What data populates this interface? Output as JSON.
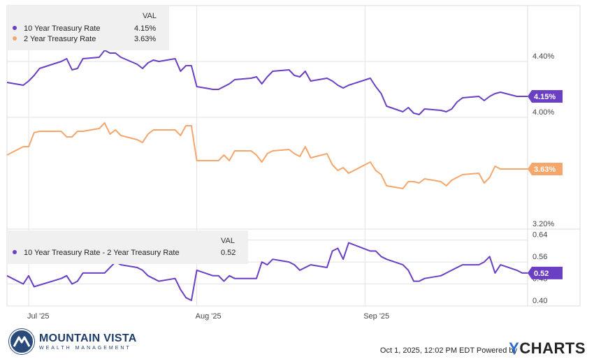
{
  "chart_data": [
    {
      "type": "line",
      "ylim": [
        3.2,
        4.8
      ],
      "yticks": [
        "4.40%",
        "4.00%",
        "3.20%"
      ],
      "ytick_values": [
        4.4,
        4.0,
        3.2
      ],
      "x_start": "2025-06-27",
      "x_end": "2025-10-01",
      "xticks": [
        "Jul '25",
        "Aug '25",
        "Sep '25"
      ],
      "xtick_dates": [
        "2025-07-01",
        "2025-08-01",
        "2025-09-01"
      ],
      "legend_header": "VAL",
      "legend_position": "top-left",
      "series": [
        {
          "name": "10 Year Treasury Rate",
          "value_label": "4.15%",
          "end_badge": "4.15%",
          "color": "#6a3fc4",
          "points": [
            [
              "2025-06-27",
              4.25
            ],
            [
              "2025-06-30",
              4.23
            ],
            [
              "2025-07-01",
              4.26
            ],
            [
              "2025-07-02",
              4.3
            ],
            [
              "2025-07-03",
              4.35
            ],
            [
              "2025-07-07",
              4.4
            ],
            [
              "2025-07-08",
              4.42
            ],
            [
              "2025-07-09",
              4.34
            ],
            [
              "2025-07-10",
              4.35
            ],
            [
              "2025-07-11",
              4.42
            ],
            [
              "2025-07-14",
              4.43
            ],
            [
              "2025-07-15",
              4.48
            ],
            [
              "2025-07-16",
              4.46
            ],
            [
              "2025-07-17",
              4.46
            ],
            [
              "2025-07-18",
              4.43
            ],
            [
              "2025-07-21",
              4.38
            ],
            [
              "2025-07-22",
              4.35
            ],
            [
              "2025-07-23",
              4.39
            ],
            [
              "2025-07-24",
              4.41
            ],
            [
              "2025-07-25",
              4.4
            ],
            [
              "2025-07-28",
              4.42
            ],
            [
              "2025-07-29",
              4.33
            ],
            [
              "2025-07-30",
              4.37
            ],
            [
              "2025-07-31",
              4.37
            ],
            [
              "2025-08-01",
              4.22
            ],
            [
              "2025-08-04",
              4.2
            ],
            [
              "2025-08-05",
              4.2
            ],
            [
              "2025-08-06",
              4.22
            ],
            [
              "2025-08-07",
              4.24
            ],
            [
              "2025-08-08",
              4.27
            ],
            [
              "2025-08-11",
              4.28
            ],
            [
              "2025-08-12",
              4.29
            ],
            [
              "2025-08-13",
              4.24
            ],
            [
              "2025-08-14",
              4.29
            ],
            [
              "2025-08-15",
              4.33
            ],
            [
              "2025-08-18",
              4.34
            ],
            [
              "2025-08-19",
              4.3
            ],
            [
              "2025-08-20",
              4.29
            ],
            [
              "2025-08-21",
              4.33
            ],
            [
              "2025-08-22",
              4.26
            ],
            [
              "2025-08-25",
              4.28
            ],
            [
              "2025-08-26",
              4.26
            ],
            [
              "2025-08-27",
              4.23
            ],
            [
              "2025-08-28",
              4.21
            ],
            [
              "2025-08-29",
              4.23
            ],
            [
              "2025-09-02",
              4.28
            ],
            [
              "2025-09-03",
              4.22
            ],
            [
              "2025-09-04",
              4.17
            ],
            [
              "2025-09-05",
              4.08
            ],
            [
              "2025-09-08",
              4.04
            ],
            [
              "2025-09-09",
              4.07
            ],
            [
              "2025-09-10",
              4.03
            ],
            [
              "2025-09-11",
              4.02
            ],
            [
              "2025-09-12",
              4.06
            ],
            [
              "2025-09-15",
              4.05
            ],
            [
              "2025-09-16",
              4.04
            ],
            [
              "2025-09-17",
              4.06
            ],
            [
              "2025-09-18",
              4.11
            ],
            [
              "2025-09-19",
              4.14
            ],
            [
              "2025-09-22",
              4.15
            ],
            [
              "2025-09-23",
              4.12
            ],
            [
              "2025-09-24",
              4.15
            ],
            [
              "2025-09-25",
              4.17
            ],
            [
              "2025-09-26",
              4.18
            ],
            [
              "2025-09-29",
              4.15
            ],
            [
              "2025-09-30",
              4.15
            ],
            [
              "2025-10-01",
              4.15
            ]
          ]
        },
        {
          "name": "2 Year Treasury Rate",
          "value_label": "3.63%",
          "end_badge": "3.63%",
          "color": "#f4a66b",
          "points": [
            [
              "2025-06-27",
              3.73
            ],
            [
              "2025-06-30",
              3.79
            ],
            [
              "2025-07-01",
              3.79
            ],
            [
              "2025-07-02",
              3.89
            ],
            [
              "2025-07-03",
              3.9
            ],
            [
              "2025-07-07",
              3.9
            ],
            [
              "2025-07-08",
              3.86
            ],
            [
              "2025-07-09",
              3.86
            ],
            [
              "2025-07-10",
              3.9
            ],
            [
              "2025-07-11",
              3.9
            ],
            [
              "2025-07-14",
              3.92
            ],
            [
              "2025-07-15",
              3.96
            ],
            [
              "2025-07-16",
              3.88
            ],
            [
              "2025-07-17",
              3.91
            ],
            [
              "2025-07-18",
              3.87
            ],
            [
              "2025-07-21",
              3.84
            ],
            [
              "2025-07-22",
              3.82
            ],
            [
              "2025-07-23",
              3.88
            ],
            [
              "2025-07-24",
              3.91
            ],
            [
              "2025-07-25",
              3.91
            ],
            [
              "2025-07-28",
              3.91
            ],
            [
              "2025-07-29",
              3.87
            ],
            [
              "2025-07-30",
              3.94
            ],
            [
              "2025-07-31",
              3.94
            ],
            [
              "2025-08-01",
              3.69
            ],
            [
              "2025-08-04",
              3.69
            ],
            [
              "2025-08-05",
              3.69
            ],
            [
              "2025-08-06",
              3.73
            ],
            [
              "2025-08-07",
              3.69
            ],
            [
              "2025-08-08",
              3.76
            ],
            [
              "2025-08-11",
              3.76
            ],
            [
              "2025-08-12",
              3.73
            ],
            [
              "2025-08-13",
              3.68
            ],
            [
              "2025-08-14",
              3.74
            ],
            [
              "2025-08-15",
              3.76
            ],
            [
              "2025-08-18",
              3.77
            ],
            [
              "2025-08-19",
              3.74
            ],
            [
              "2025-08-20",
              3.72
            ],
            [
              "2025-08-21",
              3.79
            ],
            [
              "2025-08-22",
              3.71
            ],
            [
              "2025-08-25",
              3.74
            ],
            [
              "2025-08-26",
              3.66
            ],
            [
              "2025-08-27",
              3.62
            ],
            [
              "2025-08-28",
              3.64
            ],
            [
              "2025-08-29",
              3.6
            ],
            [
              "2025-09-02",
              3.68
            ],
            [
              "2025-09-03",
              3.62
            ],
            [
              "2025-09-04",
              3.59
            ],
            [
              "2025-09-05",
              3.51
            ],
            [
              "2025-09-08",
              3.49
            ],
            [
              "2025-09-09",
              3.54
            ],
            [
              "2025-09-10",
              3.54
            ],
            [
              "2025-09-11",
              3.53
            ],
            [
              "2025-09-12",
              3.56
            ],
            [
              "2025-09-15",
              3.54
            ],
            [
              "2025-09-16",
              3.51
            ],
            [
              "2025-09-17",
              3.55
            ],
            [
              "2025-09-18",
              3.57
            ],
            [
              "2025-09-19",
              3.59
            ],
            [
              "2025-09-22",
              3.6
            ],
            [
              "2025-09-23",
              3.53
            ],
            [
              "2025-09-24",
              3.57
            ],
            [
              "2025-09-25",
              3.65
            ],
            [
              "2025-09-26",
              3.63
            ],
            [
              "2025-09-29",
              3.63
            ],
            [
              "2025-09-30",
              3.63
            ],
            [
              "2025-10-01",
              3.63
            ]
          ]
        }
      ]
    },
    {
      "type": "line",
      "ylim": [
        0.4,
        0.68
      ],
      "yticks": [
        "0.64",
        "0.56",
        "0.48",
        "0.40"
      ],
      "ytick_values": [
        0.64,
        0.56,
        0.48,
        0.4
      ],
      "x_start": "2025-06-27",
      "x_end": "2025-10-01",
      "legend_header": "VAL",
      "legend_position": "top-left",
      "series": [
        {
          "name": "10 Year Treasury Rate - 2 Year Treasury Rate",
          "value_label": "0.52",
          "end_badge": "0.52",
          "color": "#6a3fc4",
          "points": [
            [
              "2025-06-27",
              0.51
            ],
            [
              "2025-06-30",
              0.48
            ],
            [
              "2025-07-01",
              0.51
            ],
            [
              "2025-07-02",
              0.47
            ],
            [
              "2025-07-07",
              0.5
            ],
            [
              "2025-07-08",
              0.51
            ],
            [
              "2025-07-09",
              0.48
            ],
            [
              "2025-07-10",
              0.49
            ],
            [
              "2025-07-11",
              0.52
            ],
            [
              "2025-07-14",
              0.52
            ],
            [
              "2025-07-15",
              0.52
            ],
            [
              "2025-07-16",
              0.54
            ],
            [
              "2025-07-17",
              0.56
            ],
            [
              "2025-07-18",
              0.55
            ],
            [
              "2025-07-21",
              0.54
            ],
            [
              "2025-07-22",
              0.53
            ],
            [
              "2025-07-23",
              0.51
            ],
            [
              "2025-07-24",
              0.5
            ],
            [
              "2025-07-25",
              0.49
            ],
            [
              "2025-07-28",
              0.5
            ],
            [
              "2025-07-29",
              0.46
            ],
            [
              "2025-07-30",
              0.43
            ],
            [
              "2025-07-31",
              0.42
            ],
            [
              "2025-08-01",
              0.53
            ],
            [
              "2025-08-04",
              0.51
            ],
            [
              "2025-08-05",
              0.51
            ],
            [
              "2025-08-06",
              0.49
            ],
            [
              "2025-08-07",
              0.51
            ],
            [
              "2025-08-08",
              0.5
            ],
            [
              "2025-08-12",
              0.5
            ],
            [
              "2025-08-13",
              0.56
            ],
            [
              "2025-08-14",
              0.55
            ],
            [
              "2025-08-15",
              0.57
            ],
            [
              "2025-08-18",
              0.56
            ],
            [
              "2025-08-19",
              0.55
            ],
            [
              "2025-08-20",
              0.53
            ],
            [
              "2025-08-21",
              0.54
            ],
            [
              "2025-08-22",
              0.55
            ],
            [
              "2025-08-25",
              0.54
            ],
            [
              "2025-08-26",
              0.6
            ],
            [
              "2025-08-27",
              0.61
            ],
            [
              "2025-08-28",
              0.57
            ],
            [
              "2025-08-29",
              0.63
            ],
            [
              "2025-09-02",
              0.6
            ],
            [
              "2025-09-03",
              0.6
            ],
            [
              "2025-09-04",
              0.58
            ],
            [
              "2025-09-05",
              0.57
            ],
            [
              "2025-09-08",
              0.55
            ],
            [
              "2025-09-09",
              0.53
            ],
            [
              "2025-09-10",
              0.49
            ],
            [
              "2025-09-11",
              0.49
            ],
            [
              "2025-09-12",
              0.5
            ],
            [
              "2025-09-15",
              0.51
            ],
            [
              "2025-09-16",
              0.52
            ],
            [
              "2025-09-17",
              0.53
            ],
            [
              "2025-09-18",
              0.54
            ],
            [
              "2025-09-19",
              0.55
            ],
            [
              "2025-09-22",
              0.55
            ],
            [
              "2025-09-23",
              0.56
            ],
            [
              "2025-09-24",
              0.58
            ],
            [
              "2025-09-25",
              0.52
            ],
            [
              "2025-09-26",
              0.55
            ],
            [
              "2025-09-29",
              0.53
            ],
            [
              "2025-09-30",
              0.52
            ],
            [
              "2025-10-01",
              0.52
            ]
          ]
        }
      ]
    }
  ],
  "footer": {
    "brand_name": "MOUNTAIN VISTA",
    "brand_sub": "WEALTH MANAGEMENT",
    "timestamp": "Oct 1, 2025, 12:02 PM EDT Powered by",
    "ycharts_y": "Y",
    "ycharts_rest": "CHARTS"
  },
  "colors": {
    "purple": "#6a3fc4",
    "orange": "#f4a66b",
    "grid": "#dcdcdc",
    "legend_bg": "#f0f0f0"
  }
}
